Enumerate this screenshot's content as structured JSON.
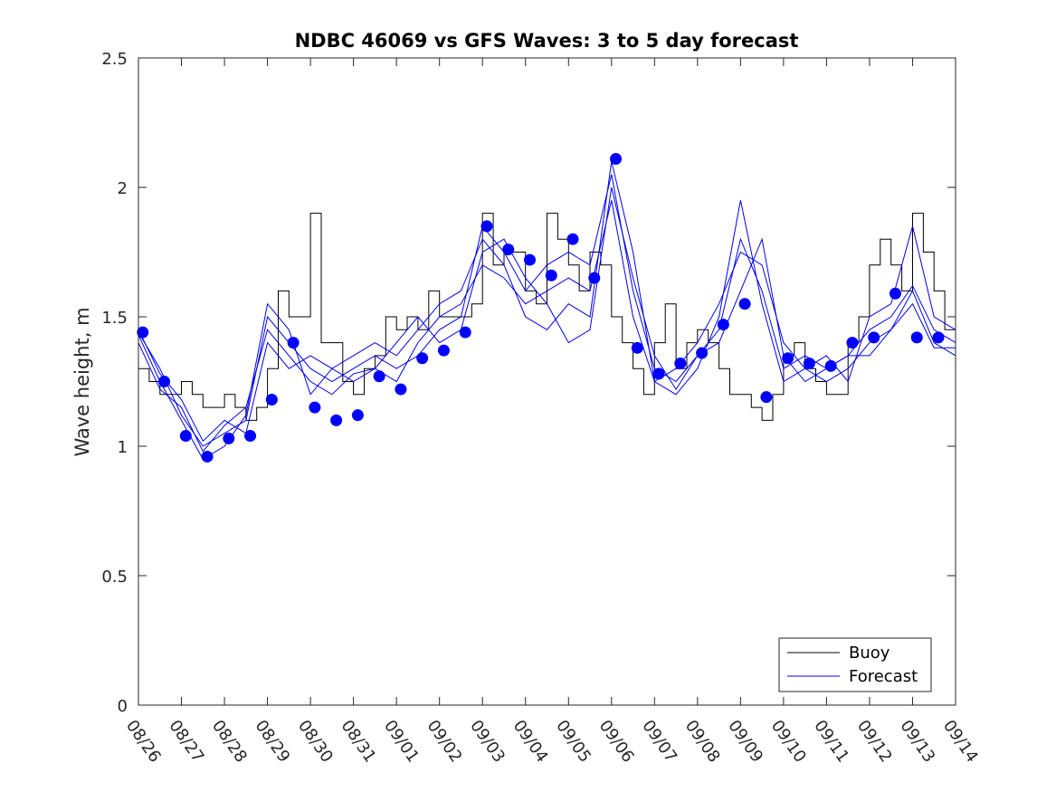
{
  "chart_data": {
    "type": "line",
    "title": "NDBC 46069 vs GFS Waves: 3 to 5 day forecast",
    "xlabel": "",
    "ylabel": "Wave height, m",
    "ylim": [
      0,
      2.5
    ],
    "yticks": [
      0,
      0.5,
      1,
      1.5,
      2,
      2.5
    ],
    "yticklabels": [
      "0",
      "0.5",
      "1",
      "1.5",
      "2",
      "2.5"
    ],
    "xlim": [
      0,
      19
    ],
    "xticklabels": [
      "08/26",
      "08/27",
      "08/28",
      "08/29",
      "08/30",
      "08/31",
      "09/01",
      "09/02",
      "09/03",
      "09/04",
      "09/05",
      "09/06",
      "09/07",
      "09/08",
      "09/09",
      "09/10",
      "09/11",
      "09/12",
      "09/13",
      "09/14"
    ],
    "legend": {
      "location": "bottom-right",
      "entries": [
        "Buoy",
        "Forecast"
      ]
    },
    "colors": {
      "buoy": "#000000",
      "forecast": "#0000ee",
      "markers": "#0000ff"
    },
    "series": [
      {
        "name": "Buoy",
        "x": [
          0,
          0.25,
          0.5,
          0.75,
          1,
          1.25,
          1.5,
          1.75,
          2,
          2.25,
          2.5,
          2.75,
          3,
          3.25,
          3.5,
          3.75,
          4,
          4.25,
          4.5,
          4.75,
          5,
          5.25,
          5.5,
          5.75,
          6,
          6.25,
          6.5,
          6.75,
          7,
          7.25,
          7.5,
          7.75,
          8,
          8.25,
          8.5,
          8.75,
          9,
          9.25,
          9.5,
          9.75,
          10,
          10.25,
          10.5,
          10.75,
          11,
          11.25,
          11.5,
          11.75,
          12,
          12.25,
          12.5,
          12.75,
          13,
          13.25,
          13.5,
          13.75,
          14,
          14.25,
          14.5,
          14.75,
          15,
          15.25,
          15.5,
          15.75,
          16,
          16.25,
          16.5,
          16.75,
          17,
          17.25,
          17.5,
          17.75,
          18,
          18.25,
          18.5,
          18.75,
          19
        ],
        "values": [
          1.3,
          1.25,
          1.2,
          1.2,
          1.25,
          1.2,
          1.15,
          1.15,
          1.2,
          1.15,
          1.1,
          1.15,
          1.3,
          1.6,
          1.5,
          1.5,
          1.9,
          1.4,
          1.4,
          1.25,
          1.2,
          1.3,
          1.35,
          1.5,
          1.45,
          1.5,
          1.45,
          1.6,
          1.5,
          1.5,
          1.5,
          1.55,
          1.9,
          1.7,
          1.75,
          1.75,
          1.6,
          1.55,
          1.9,
          1.8,
          1.7,
          1.6,
          1.75,
          1.7,
          1.5,
          1.4,
          1.3,
          1.2,
          1.4,
          1.55,
          1.3,
          1.4,
          1.45,
          1.4,
          1.3,
          1.2,
          1.2,
          1.15,
          1.1,
          1.2,
          1.35,
          1.4,
          1.3,
          1.25,
          1.2,
          1.2,
          1.4,
          1.5,
          1.7,
          1.8,
          1.7,
          1.6,
          1.9,
          1.75,
          1.6,
          1.45,
          1.4
        ]
      },
      {
        "name": "Forecast",
        "x": [
          0,
          0.5,
          1,
          1.5,
          2,
          2.5,
          3,
          3.5,
          4,
          4.5,
          5,
          5.5,
          6,
          6.5,
          7,
          7.5,
          8,
          8.5,
          9,
          9.5,
          10,
          10.5,
          11,
          11.5,
          12,
          12.5,
          13,
          13.5,
          14,
          14.5,
          15,
          15.5,
          16,
          16.5,
          17,
          17.5,
          18,
          18.5,
          19
        ],
        "values": [
          1.44,
          1.3,
          1.12,
          1.0,
          1.05,
          1.1,
          1.5,
          1.4,
          1.3,
          1.25,
          1.3,
          1.35,
          1.3,
          1.35,
          1.45,
          1.5,
          1.85,
          1.75,
          1.6,
          1.7,
          1.75,
          1.7,
          2.05,
          1.6,
          1.3,
          1.25,
          1.35,
          1.45,
          1.8,
          1.6,
          1.3,
          1.35,
          1.3,
          1.35,
          1.45,
          1.5,
          1.62,
          1.45,
          1.4
        ]
      },
      {
        "name": "Forecast",
        "x": [
          0,
          0.5,
          1,
          1.5,
          2,
          2.5,
          3,
          3.5,
          4,
          4.5,
          5,
          5.5,
          6,
          6.5,
          7,
          7.5,
          8,
          8.5,
          9,
          9.5,
          10,
          10.5,
          11,
          11.5,
          12,
          12.5,
          13,
          13.5,
          14,
          14.5,
          15,
          15.5,
          16,
          16.5,
          17,
          17.5,
          18,
          18.5,
          19
        ],
        "values": [
          1.4,
          1.22,
          1.15,
          0.98,
          1.08,
          1.15,
          1.45,
          1.35,
          1.25,
          1.2,
          1.28,
          1.3,
          1.25,
          1.4,
          1.5,
          1.55,
          1.7,
          1.65,
          1.55,
          1.6,
          1.65,
          1.6,
          1.95,
          1.5,
          1.25,
          1.2,
          1.3,
          1.5,
          1.95,
          1.55,
          1.25,
          1.3,
          1.25,
          1.3,
          1.4,
          1.45,
          1.6,
          1.4,
          1.35
        ]
      },
      {
        "name": "Forecast",
        "x": [
          0,
          0.5,
          1,
          1.5,
          2,
          2.5,
          3,
          3.5,
          4,
          4.5,
          5,
          5.5,
          6,
          6.5,
          7,
          7.5,
          8,
          8.5,
          9,
          9.5,
          10,
          10.5,
          11,
          11.5,
          12,
          12.5,
          13,
          13.5,
          14,
          14.5,
          15,
          15.5,
          16,
          16.5,
          17,
          17.5,
          18,
          18.5,
          19
        ],
        "values": [
          1.43,
          1.25,
          1.1,
          0.95,
          1.0,
          1.12,
          1.55,
          1.45,
          1.2,
          1.3,
          1.35,
          1.4,
          1.35,
          1.45,
          1.55,
          1.6,
          1.8,
          1.7,
          1.5,
          1.45,
          1.55,
          1.5,
          2.1,
          1.75,
          1.25,
          1.3,
          1.4,
          1.55,
          1.75,
          1.7,
          1.4,
          1.3,
          1.35,
          1.25,
          1.5,
          1.55,
          1.85,
          1.5,
          1.45
        ]
      },
      {
        "name": "Forecast",
        "x": [
          0,
          0.5,
          1,
          1.5,
          2,
          2.5,
          3,
          3.5,
          4,
          4.5,
          5,
          5.5,
          6,
          6.5,
          7,
          7.5,
          8,
          8.5,
          9,
          9.5,
          10,
          10.5,
          11,
          11.5,
          12,
          12.5,
          13,
          13.5,
          14,
          14.5,
          15,
          15.5,
          16,
          16.5,
          17,
          17.5,
          18,
          18.5,
          19
        ],
        "values": [
          1.45,
          1.28,
          1.18,
          1.02,
          1.1,
          1.05,
          1.4,
          1.3,
          1.35,
          1.3,
          1.25,
          1.3,
          1.4,
          1.5,
          1.4,
          1.45,
          1.75,
          1.8,
          1.65,
          1.55,
          1.4,
          1.45,
          2.0,
          1.65,
          1.35,
          1.22,
          1.35,
          1.4,
          1.6,
          1.8,
          1.35,
          1.25,
          1.3,
          1.35,
          1.35,
          1.45,
          1.55,
          1.38,
          1.38
        ]
      },
      {
        "name": "Forecast (markers)",
        "x": [
          0.1,
          0.6,
          1.1,
          1.6,
          2.1,
          2.6,
          3.1,
          3.6,
          4.1,
          4.6,
          5.1,
          5.6,
          6.1,
          6.6,
          7.1,
          7.6,
          8.1,
          8.6,
          9.1,
          9.6,
          10.1,
          10.6,
          11.1,
          11.6,
          12.1,
          12.6,
          13.1,
          13.6,
          14.1,
          14.6,
          15.1,
          15.6,
          16.1,
          16.6,
          17.1,
          17.6,
          18.1,
          18.6
        ],
        "values": [
          1.44,
          1.25,
          1.04,
          0.96,
          1.03,
          1.04,
          1.18,
          1.4,
          1.15,
          1.1,
          1.12,
          1.27,
          1.22,
          1.34,
          1.37,
          1.44,
          1.85,
          1.76,
          1.72,
          1.66,
          1.8,
          1.65,
          2.11,
          1.38,
          1.28,
          1.32,
          1.36,
          1.47,
          1.55,
          1.19,
          1.34,
          1.32,
          1.31,
          1.4,
          1.42,
          1.59,
          1.42,
          1.42
        ]
      }
    ]
  }
}
